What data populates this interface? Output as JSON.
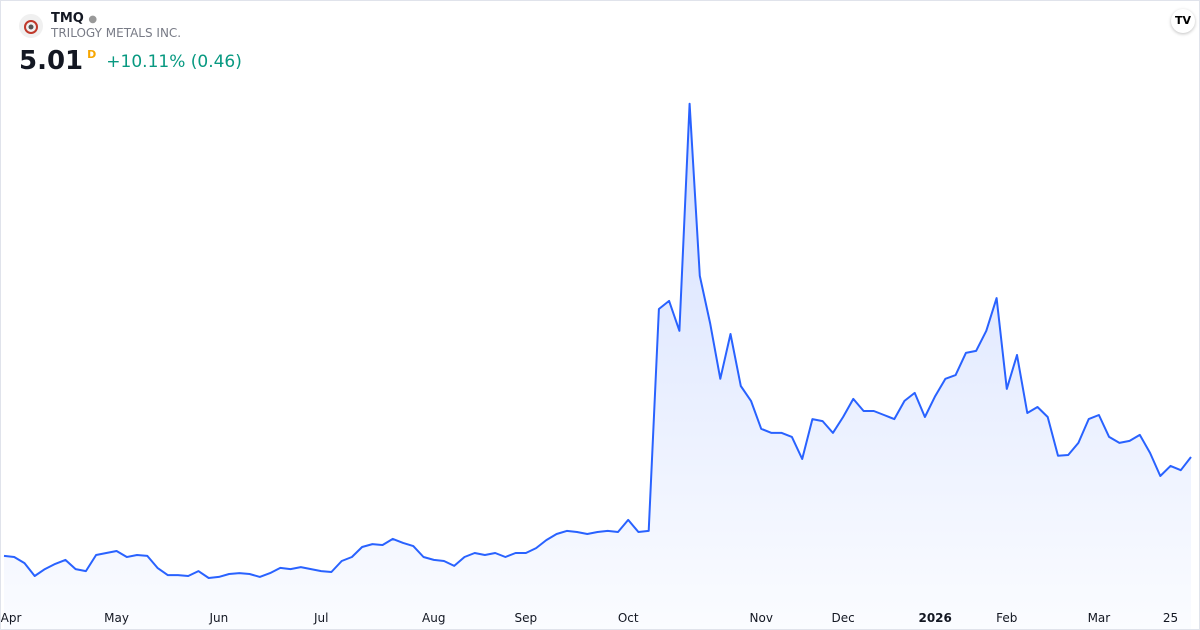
{
  "header": {
    "symbol": "TMQ",
    "company": "TRILOGY METALS INC.",
    "price": "5.01",
    "price_flag": "D",
    "change": "+10.11% (0.46)"
  },
  "chart_data": {
    "type": "area",
    "color": "#2962ff",
    "categories": [
      "Apr",
      null,
      null,
      null,
      null,
      null,
      null,
      null,
      null,
      null,
      null,
      "May",
      null,
      null,
      null,
      null,
      null,
      null,
      null,
      null,
      null,
      "Jun",
      null,
      null,
      null,
      null,
      null,
      null,
      null,
      null,
      null,
      "Jul",
      null,
      null,
      null,
      null,
      null,
      null,
      null,
      null,
      null,
      null,
      "Aug",
      null,
      null,
      null,
      null,
      null,
      null,
      null,
      null,
      "Sep",
      null,
      null,
      null,
      null,
      null,
      null,
      null,
      null,
      null,
      "Oct",
      null,
      null,
      null,
      null,
      null,
      null,
      null,
      null,
      null,
      null,
      null,
      null,
      "Nov",
      null,
      null,
      null,
      null,
      null,
      null,
      null,
      "Dec",
      null,
      null,
      null,
      null,
      null,
      null,
      null,
      null,
      "2026",
      null,
      null,
      null,
      null,
      null,
      null,
      "Feb",
      null,
      null,
      null,
      null,
      null,
      null,
      null,
      null,
      "Mar",
      null,
      null,
      null,
      null,
      null,
      null,
      "25",
      null,
      null
    ],
    "values": [
      1.57,
      1.53,
      1.32,
      0.87,
      1.11,
      1.29,
      1.43,
      1.11,
      1.04,
      1.6,
      1.67,
      1.74,
      1.53,
      1.6,
      1.57,
      1.15,
      0.9,
      0.9,
      0.87,
      1.04,
      0.8,
      0.84,
      0.94,
      0.97,
      0.94,
      0.84,
      0.97,
      1.15,
      1.11,
      1.18,
      1.11,
      1.04,
      1.01,
      1.39,
      1.53,
      1.88,
      1.98,
      1.95,
      2.16,
      2.02,
      1.91,
      1.53,
      1.43,
      1.39,
      1.22,
      1.53,
      1.67,
      1.6,
      1.67,
      1.53,
      1.67,
      1.67,
      1.84,
      2.12,
      2.33,
      2.44,
      2.4,
      2.33,
      2.4,
      2.44,
      2.4,
      2.82,
      2.4,
      2.44,
      10.16,
      10.44,
      9.4,
      17.3,
      11.31,
      9.67,
      7.73,
      9.29,
      7.48,
      6.96,
      5.99,
      5.85,
      5.85,
      5.71,
      4.94,
      6.33,
      6.26,
      5.85,
      6.4,
      7.03,
      6.61,
      6.61,
      6.47,
      6.33,
      6.96,
      7.24,
      6.4,
      7.13,
      7.73,
      7.86,
      8.63,
      8.7,
      9.4,
      10.54,
      7.38,
      8.56,
      6.54,
      6.75,
      6.4,
      5.05,
      5.08,
      5.5,
      6.33,
      6.47,
      5.71,
      5.5,
      5.57,
      5.78,
      5.15,
      4.35,
      4.7,
      4.55,
      5.01
    ],
    "ylim": [
      0,
      17.5
    ]
  }
}
